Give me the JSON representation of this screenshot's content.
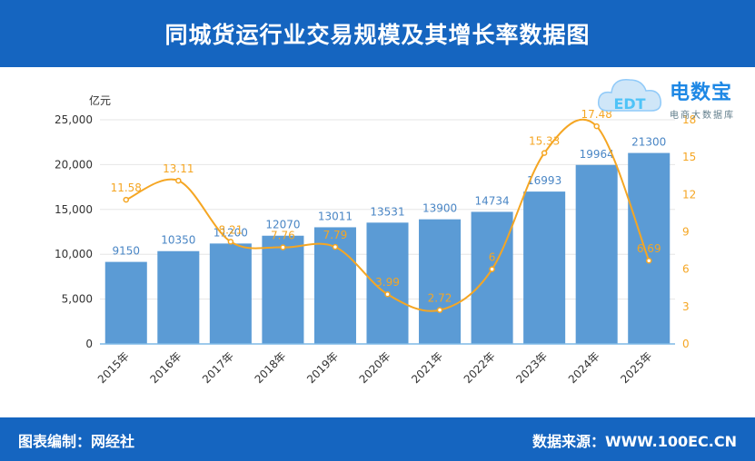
{
  "header": {
    "title": "同城货运行业交易规模及其增长率数据图"
  },
  "footer": {
    "left_text": "图表编制：网经社",
    "right_text": "数据来源：WWW.100EC.CN"
  },
  "logo": {
    "brand": "电数宝",
    "sub": "电商大数据库",
    "mark": "EDT"
  },
  "colors": {
    "header_bg": "#1565c0",
    "bar": "#5b9bd5",
    "line": "#f5a623",
    "axis_left_text": "#333333",
    "axis_right_text": "#f5a623"
  },
  "chart_data": {
    "type": "bar",
    "categories": [
      "2015年",
      "2016年",
      "2017年",
      "2018年",
      "2019年",
      "2020年",
      "2021年",
      "2022年",
      "2023年",
      "2024年",
      "2025年"
    ],
    "left_axis": {
      "unit_label": "亿元",
      "ylim": [
        0,
        25000
      ],
      "ticks": [
        "0",
        "5,000",
        "10,000",
        "15,000",
        "20,000",
        "25,000"
      ]
    },
    "right_axis": {
      "ylim": [
        0,
        18
      ],
      "ticks": [
        "0",
        "3",
        "6",
        "9",
        "12",
        "15",
        "18"
      ]
    },
    "series": [
      {
        "type": "bar",
        "values": [
          9150,
          10350,
          11200,
          12070,
          13011,
          13531,
          13900,
          14734,
          16993,
          19964,
          21300
        ],
        "labels": [
          "9150",
          "10350",
          "11200",
          "12070",
          "13011",
          "13531",
          "13900",
          "14734",
          "16993",
          "19964",
          "21300"
        ]
      },
      {
        "type": "line",
        "axis": "right",
        "values": [
          11.58,
          13.11,
          8.21,
          7.76,
          7.79,
          3.99,
          2.72,
          6,
          15.33,
          17.48,
          6.69
        ],
        "labels": [
          "11.58",
          "13.11",
          "8.21",
          "7.76",
          "7.79",
          "3.99",
          "2.72",
          "6",
          "15.33",
          "17.48",
          "6.69"
        ]
      }
    ],
    "grid": true
  }
}
